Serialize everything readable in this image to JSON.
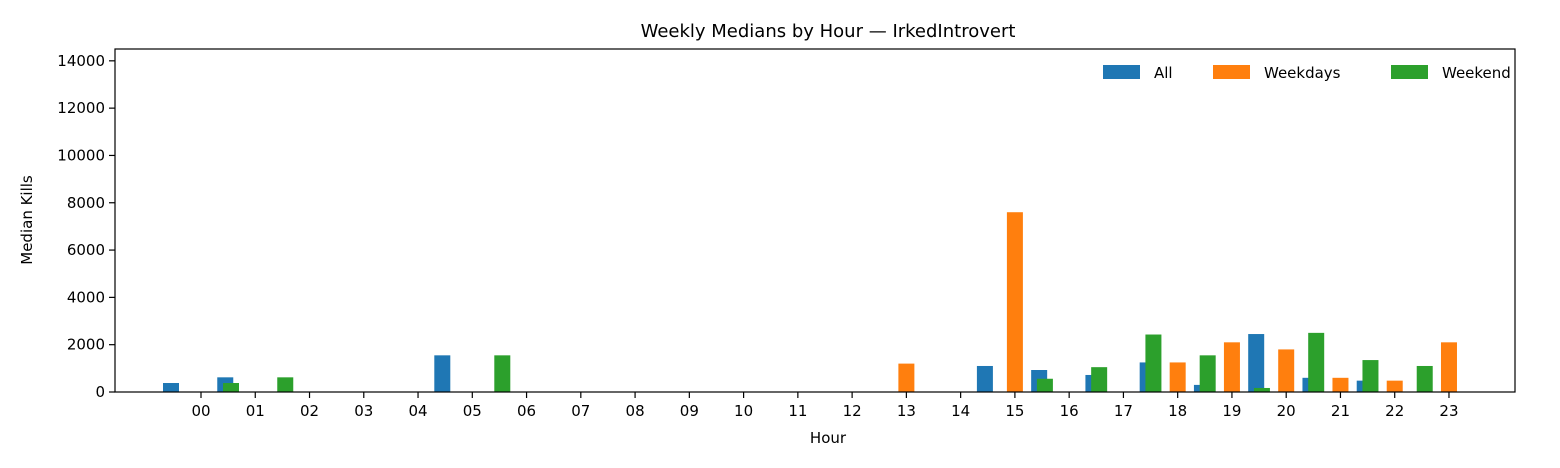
{
  "chart_data": {
    "type": "bar",
    "title": "Weekly Medians by Hour — IrkedIntrovert",
    "xlabel": "Hour",
    "ylabel": "Median Kills",
    "ylim": [
      0,
      14500
    ],
    "yticks": [
      0,
      2000,
      4000,
      6000,
      8000,
      10000,
      12000,
      14000
    ],
    "grid": false,
    "legend_position": "top-right",
    "categories": [
      "00",
      "01",
      "02",
      "03",
      "04",
      "05",
      "06",
      "07",
      "08",
      "09",
      "10",
      "11",
      "12",
      "13",
      "14",
      "15",
      "16",
      "17",
      "18",
      "19",
      "20",
      "21",
      "22",
      "23"
    ],
    "series": [
      {
        "name": "All",
        "color": "#1f77b4",
        "values": [
          380,
          620,
          0,
          0,
          0,
          1550,
          0,
          0,
          0,
          0,
          0,
          0,
          0,
          0,
          0,
          1100,
          930,
          720,
          1250,
          300,
          2450,
          600,
          480,
          0
        ]
      },
      {
        "name": "Weekdays",
        "color": "#ff7f0e",
        "values": [
          0,
          0,
          0,
          0,
          0,
          0,
          0,
          0,
          0,
          0,
          0,
          0,
          0,
          1200,
          0,
          7600,
          0,
          0,
          1250,
          2100,
          1800,
          600,
          480,
          2100
        ]
      },
      {
        "name": "Weekend",
        "color": "#2ca02c",
        "values": [
          380,
          620,
          0,
          0,
          0,
          1550,
          0,
          0,
          0,
          0,
          0,
          0,
          0,
          0,
          0,
          560,
          1050,
          2430,
          1550,
          170,
          2500,
          1350,
          1100,
          0
        ]
      }
    ]
  }
}
